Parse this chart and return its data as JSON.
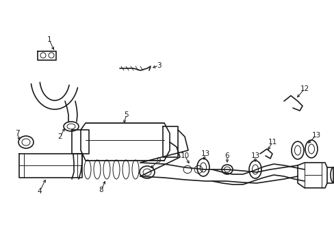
{
  "bg_color": "#ffffff",
  "line_color": "#1a1a1a",
  "lw_main": 1.2,
  "lw_thin": 0.7,
  "font_size": 7.5,
  "fig_w": 4.89,
  "fig_h": 3.6,
  "dpi": 100
}
